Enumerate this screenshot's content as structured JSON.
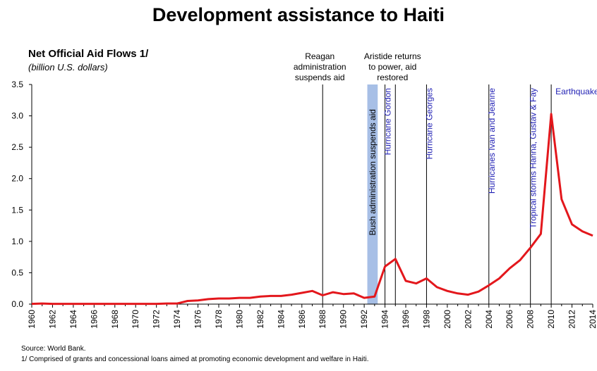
{
  "title": "Development assistance to Haiti",
  "chart_title": "Net Official Aid Flows 1/",
  "chart_subtitle": "(billion U.S. dollars)",
  "source": "Source: World Bank.",
  "footnote": "1/ Comprised of grants and concessional loans aimed at promoting economic development and welfare in Haiti.",
  "chart_data": {
    "type": "line",
    "title": "Net Official Aid Flows 1/",
    "ylabel": "(billion U.S. dollars)",
    "xlim": [
      1960,
      2014
    ],
    "ylim": [
      0,
      3.5
    ],
    "x_ticks": [
      "1960",
      "1962",
      "1964",
      "1966",
      "1968",
      "1970",
      "1972",
      "1974",
      "1976",
      "1978",
      "1980",
      "1982",
      "1984",
      "1986",
      "1988",
      "1990",
      "1992",
      "1994",
      "1996",
      "1998",
      "2000",
      "2002",
      "2004",
      "2006",
      "2008",
      "2010",
      "2012",
      "2014"
    ],
    "y_ticks": [
      "0.0",
      "0.5",
      "1.0",
      "1.5",
      "2.0",
      "2.5",
      "3.0",
      "3.5"
    ],
    "series_color": "#e3171c",
    "shaded_band": {
      "from": 1992.3,
      "to": 1993.3,
      "color": "#a7bfe6"
    },
    "series": [
      {
        "x": [
          1960,
          1961,
          1962,
          1963,
          1964,
          1965,
          1966,
          1967,
          1968,
          1969,
          1970,
          1971,
          1972,
          1973,
          1974,
          1975,
          1976,
          1977,
          1978,
          1979,
          1980,
          1981,
          1982,
          1983,
          1984,
          1985,
          1986,
          1987,
          1988,
          1989,
          1990,
          1991,
          1992,
          1993,
          1994,
          1995,
          1996,
          1997,
          1998,
          1999,
          2000,
          2001,
          2002,
          2003,
          2004,
          2005,
          2006,
          2007,
          2008,
          2009,
          2010,
          2011,
          2012,
          2013,
          2014
        ],
        "y": [
          0.005,
          0.01,
          0.005,
          0.005,
          0.005,
          0.005,
          0.005,
          0.005,
          0.005,
          0.005,
          0.005,
          0.005,
          0.005,
          0.01,
          0.01,
          0.05,
          0.06,
          0.08,
          0.09,
          0.09,
          0.1,
          0.1,
          0.12,
          0.13,
          0.13,
          0.15,
          0.18,
          0.21,
          0.14,
          0.19,
          0.16,
          0.17,
          0.1,
          0.12,
          0.6,
          0.72,
          0.37,
          0.33,
          0.41,
          0.27,
          0.21,
          0.17,
          0.15,
          0.2,
          0.3,
          0.41,
          0.57,
          0.7,
          0.9,
          1.12,
          3.03,
          1.67,
          1.27,
          1.16,
          1.09
        ]
      }
    ],
    "events": [
      {
        "x": 1988,
        "label": "Reagan administration suspends aid",
        "lines": [
          "Reagan",
          "administration",
          "suspends aid"
        ],
        "orient": "horizontal",
        "color": "#000000"
      },
      {
        "x": 1992.8,
        "label": "Bush administration suspends aid",
        "orient": "vertical",
        "color": "#000000",
        "no_line": true
      },
      {
        "x": 1994,
        "label": "Hurricane Gordon",
        "orient": "vertical",
        "color": "#1f1fb4"
      },
      {
        "x": 1995,
        "label": "Aristide returns to power, aid restored",
        "lines": [
          "Aristide returns",
          "to power, aid",
          "restored"
        ],
        "orient": "horizontal",
        "color": "#000000"
      },
      {
        "x": 1998,
        "label": "Hurricane Georges",
        "orient": "vertical",
        "color": "#1f1fb4"
      },
      {
        "x": 2004,
        "label": "Hurricanes Ivan and Jeanne",
        "orient": "vertical",
        "color": "#1f1fb4"
      },
      {
        "x": 2008,
        "label": "Tropical storms Hanna, Gustav & Fay",
        "orient": "vertical",
        "color": "#1f1fb4"
      },
      {
        "x": 2010,
        "label": "Earthquake",
        "orient": "horizontal",
        "color": "#1f1fb4"
      }
    ]
  }
}
